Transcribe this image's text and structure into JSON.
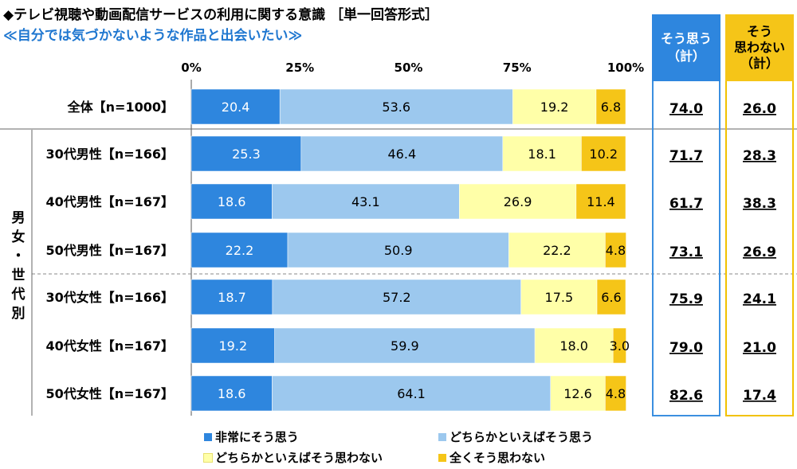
{
  "title": "◆テレビ視聴や動画配信サービスの利用に関する意識 ［単一回答形式］",
  "subtitle": "≪自分では気づかないような作品と出会いたい≫",
  "group_label": [
    "男",
    "女",
    "・",
    "世",
    "代",
    "別"
  ],
  "summary_headers": {
    "agree": [
      "そう思う",
      "（計）"
    ],
    "disagree": [
      "そう",
      "思わない",
      "（計）"
    ]
  },
  "colors": {
    "strongly_agree": "#2e86de",
    "somewhat_agree": "#9cc8ee",
    "somewhat_disagree": "#ffffa8",
    "strongly_disagree": "#f5c518",
    "agree_box": "#3b8fe0",
    "disagree_box": "#f2c200"
  },
  "chart_data": {
    "type": "bar",
    "orientation": "horizontal",
    "stacked": true,
    "x_ticks": [
      "0%",
      "25%",
      "50%",
      "75%",
      "100%"
    ],
    "xlim": [
      0,
      100
    ],
    "categories": [
      "全体【n=1000】",
      "30代男性【n=166】",
      "40代男性【n=167】",
      "50代男性【n=167】",
      "30代女性【n=166】",
      "40代女性【n=167】",
      "50代女性【n=167】"
    ],
    "series": [
      {
        "name": "非常にそう思う",
        "values": [
          20.4,
          25.3,
          18.6,
          22.2,
          18.7,
          19.2,
          18.6
        ]
      },
      {
        "name": "どちらかといえばそう思う",
        "values": [
          53.6,
          46.4,
          43.1,
          50.9,
          57.2,
          59.9,
          64.1
        ]
      },
      {
        "name": "どちらかといえばそう思わない",
        "values": [
          19.2,
          18.1,
          26.9,
          22.2,
          17.5,
          18.0,
          12.6
        ]
      },
      {
        "name": "全くそう思わない",
        "values": [
          6.8,
          10.2,
          11.4,
          4.8,
          6.6,
          3.0,
          4.8
        ]
      }
    ],
    "agree_total": [
      "74.0",
      "71.7",
      "61.7",
      "73.1",
      "75.9",
      "79.0",
      "82.6"
    ],
    "disagree_total": [
      "26.0",
      "28.3",
      "38.3",
      "26.9",
      "24.1",
      "21.0",
      "17.4"
    ],
    "legend_position": "bottom"
  }
}
